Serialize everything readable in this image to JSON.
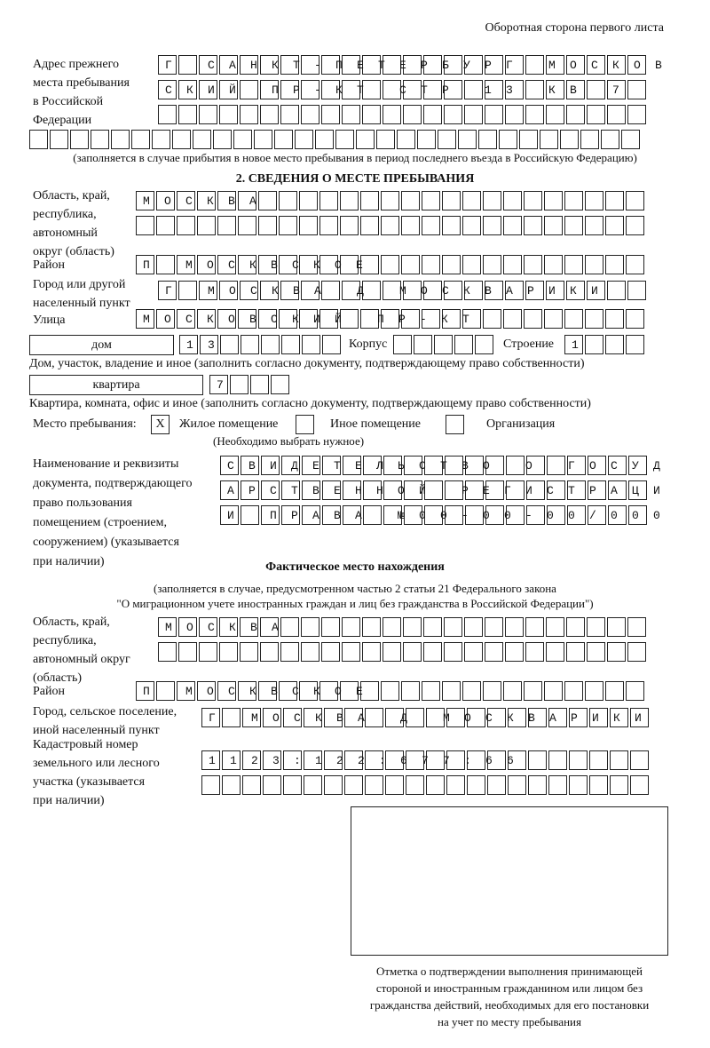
{
  "header": "Оборотная сторона первого листа",
  "prev_address": {
    "label": "Адрес прежнего\nместа пребывания\nв Российской\nФедерации",
    "rows": [
      "Г САНКТ-ПЕТЕРБУРГ МОСКОВ",
      "СКИЙ ПР-КТ СТР 13 КВ 7",
      "",
      ""
    ],
    "note": "(заполняется в случае прибытия в новое место пребывания в период последнего въезда в Российскую Федерацию)"
  },
  "section2": {
    "title": "2. СВЕДЕНИЯ О МЕСТЕ ПРЕБЫВАНИЯ",
    "region_label": "Область, край,\nреспублика,\nавтономный\nокруг (область)",
    "region_rows": [
      "МОСКВА",
      ""
    ],
    "district_label": "Район",
    "district": "П МОСКВСКОЕ",
    "city_label": "Город или другой\nнаселенный пункт",
    "city": "Г МОСКВА Д МОСКВАРИКИ",
    "street_label": "Улица",
    "street": "МОСКОВСКИЙ ПР-КТ",
    "house_type": "дом",
    "house_number": "13",
    "korpus_label": "Корпус",
    "korpus": "",
    "stroenie_label": "Строение",
    "stroenie": "1",
    "house_caption": "Дом, участок, владение и иное (заполнить согласно документу, подтверждающему право собственности)",
    "apt_type": "квартира",
    "apt_number": "7",
    "apt_caption": "Квартира, комната, офис и иное (заполнить согласно документу, подтверждающему право собственности)",
    "stay_place_label": "Место пребывания:",
    "options": [
      {
        "label": "Жилое помещение",
        "mark": "X"
      },
      {
        "label": "Иное помещение",
        "mark": ""
      },
      {
        "label": "Организация",
        "mark": ""
      }
    ],
    "choose_note": "(Необходимо выбрать нужное)",
    "doc_label": "Наименование и реквизиты\nдокумента, подтверждающего\nправо пользования\nпомещением (строением,\nсооружением) (указывается\nпри наличии)",
    "doc_rows": [
      "СВИДЕТЕЛЬСТВО О ГОСУД",
      "АРСТВЕННОЙ РЕГИСТРАЦИ",
      "И ПРАВА №00-00-00/000"
    ]
  },
  "actual": {
    "title": "Фактическое место нахождения",
    "note1": "(заполняется в случае, предусмотренном частью 2 статьи 21 Федерального закона",
    "note2": "\"О миграционном учете иностранных граждан и лиц без гражданства в Российской Федерации\")",
    "region_label": "Область, край,\nреспублика,\nавтономный округ\n(область)",
    "region_rows": [
      "МОСКВА",
      ""
    ],
    "district_label": "Район",
    "district": "П МОСКВСКОЕ",
    "city_label": "Город, сельское поселение,\nиной населенный пункт",
    "city": "Г МОСКВА Д МОСКВАРИКИ",
    "cadastral_label": "Кадастровый номер\nземельного или лесного\nучастка (указывается\nпри наличии)",
    "cadastral_rows": [
      "1123:122:677:66",
      ""
    ]
  },
  "stamp_caption": "Отметка о подтверждении выполнения принимающей\nстороной и иностранным гражданином или лицом без\nгражданства действий, необходимых для его постановки\nна учет по месту пребывания"
}
